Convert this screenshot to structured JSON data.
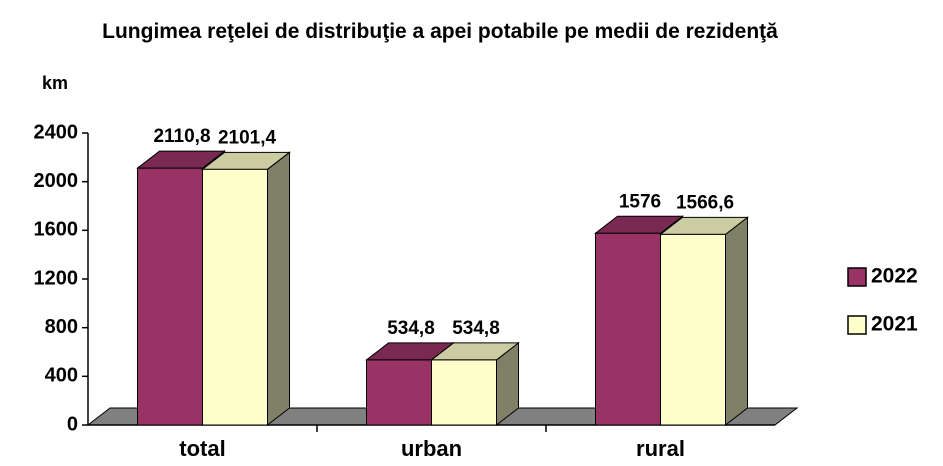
{
  "chart_data": {
    "type": "bar3d",
    "title": "Lungimea reţelei de distribuţie a apei potabile pe medii de rezidenţă",
    "y_label": "km",
    "categories": [
      "total",
      "urban",
      "rural"
    ],
    "series": [
      {
        "name": "2022",
        "color": "#993366",
        "values": [
          2110.8,
          534.8,
          1576
        ],
        "value_labels": [
          "2110,8",
          "534,8",
          "1576"
        ]
      },
      {
        "name": "2021",
        "color": "#FFFFCC",
        "values": [
          2101.4,
          534.8,
          1566.6
        ],
        "value_labels": [
          "2101,4",
          "534,8",
          "1566,6"
        ]
      }
    ],
    "ylim": [
      0,
      2400
    ],
    "yticks": [
      0,
      400,
      800,
      1200,
      1600,
      2000,
      2400
    ],
    "legend": "right"
  }
}
